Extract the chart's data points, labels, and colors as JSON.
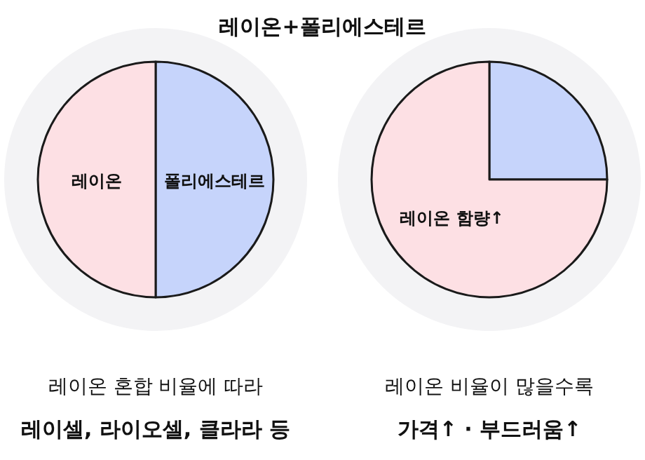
{
  "chart_data": [
    {
      "type": "pie",
      "title": "레이온+폴리에스테르",
      "categories": [
        "폴리에스테르",
        "레이온"
      ],
      "values": [
        50,
        50
      ],
      "colors": [
        "#c6d4fb",
        "#fde0e4"
      ],
      "annotations": [
        "레이온 혼합 비율에 따라",
        "레이셀, 라이오셀, 클라라 등"
      ]
    },
    {
      "type": "pie",
      "categories": [
        null,
        "레이온 함량↑"
      ],
      "values": [
        25,
        75
      ],
      "colors": [
        "#c6d4fb",
        "#fde0e4"
      ],
      "annotations": [
        "레이온 비율이 많을수록",
        "가격↑ · 부드러움↑"
      ]
    }
  ]
}
